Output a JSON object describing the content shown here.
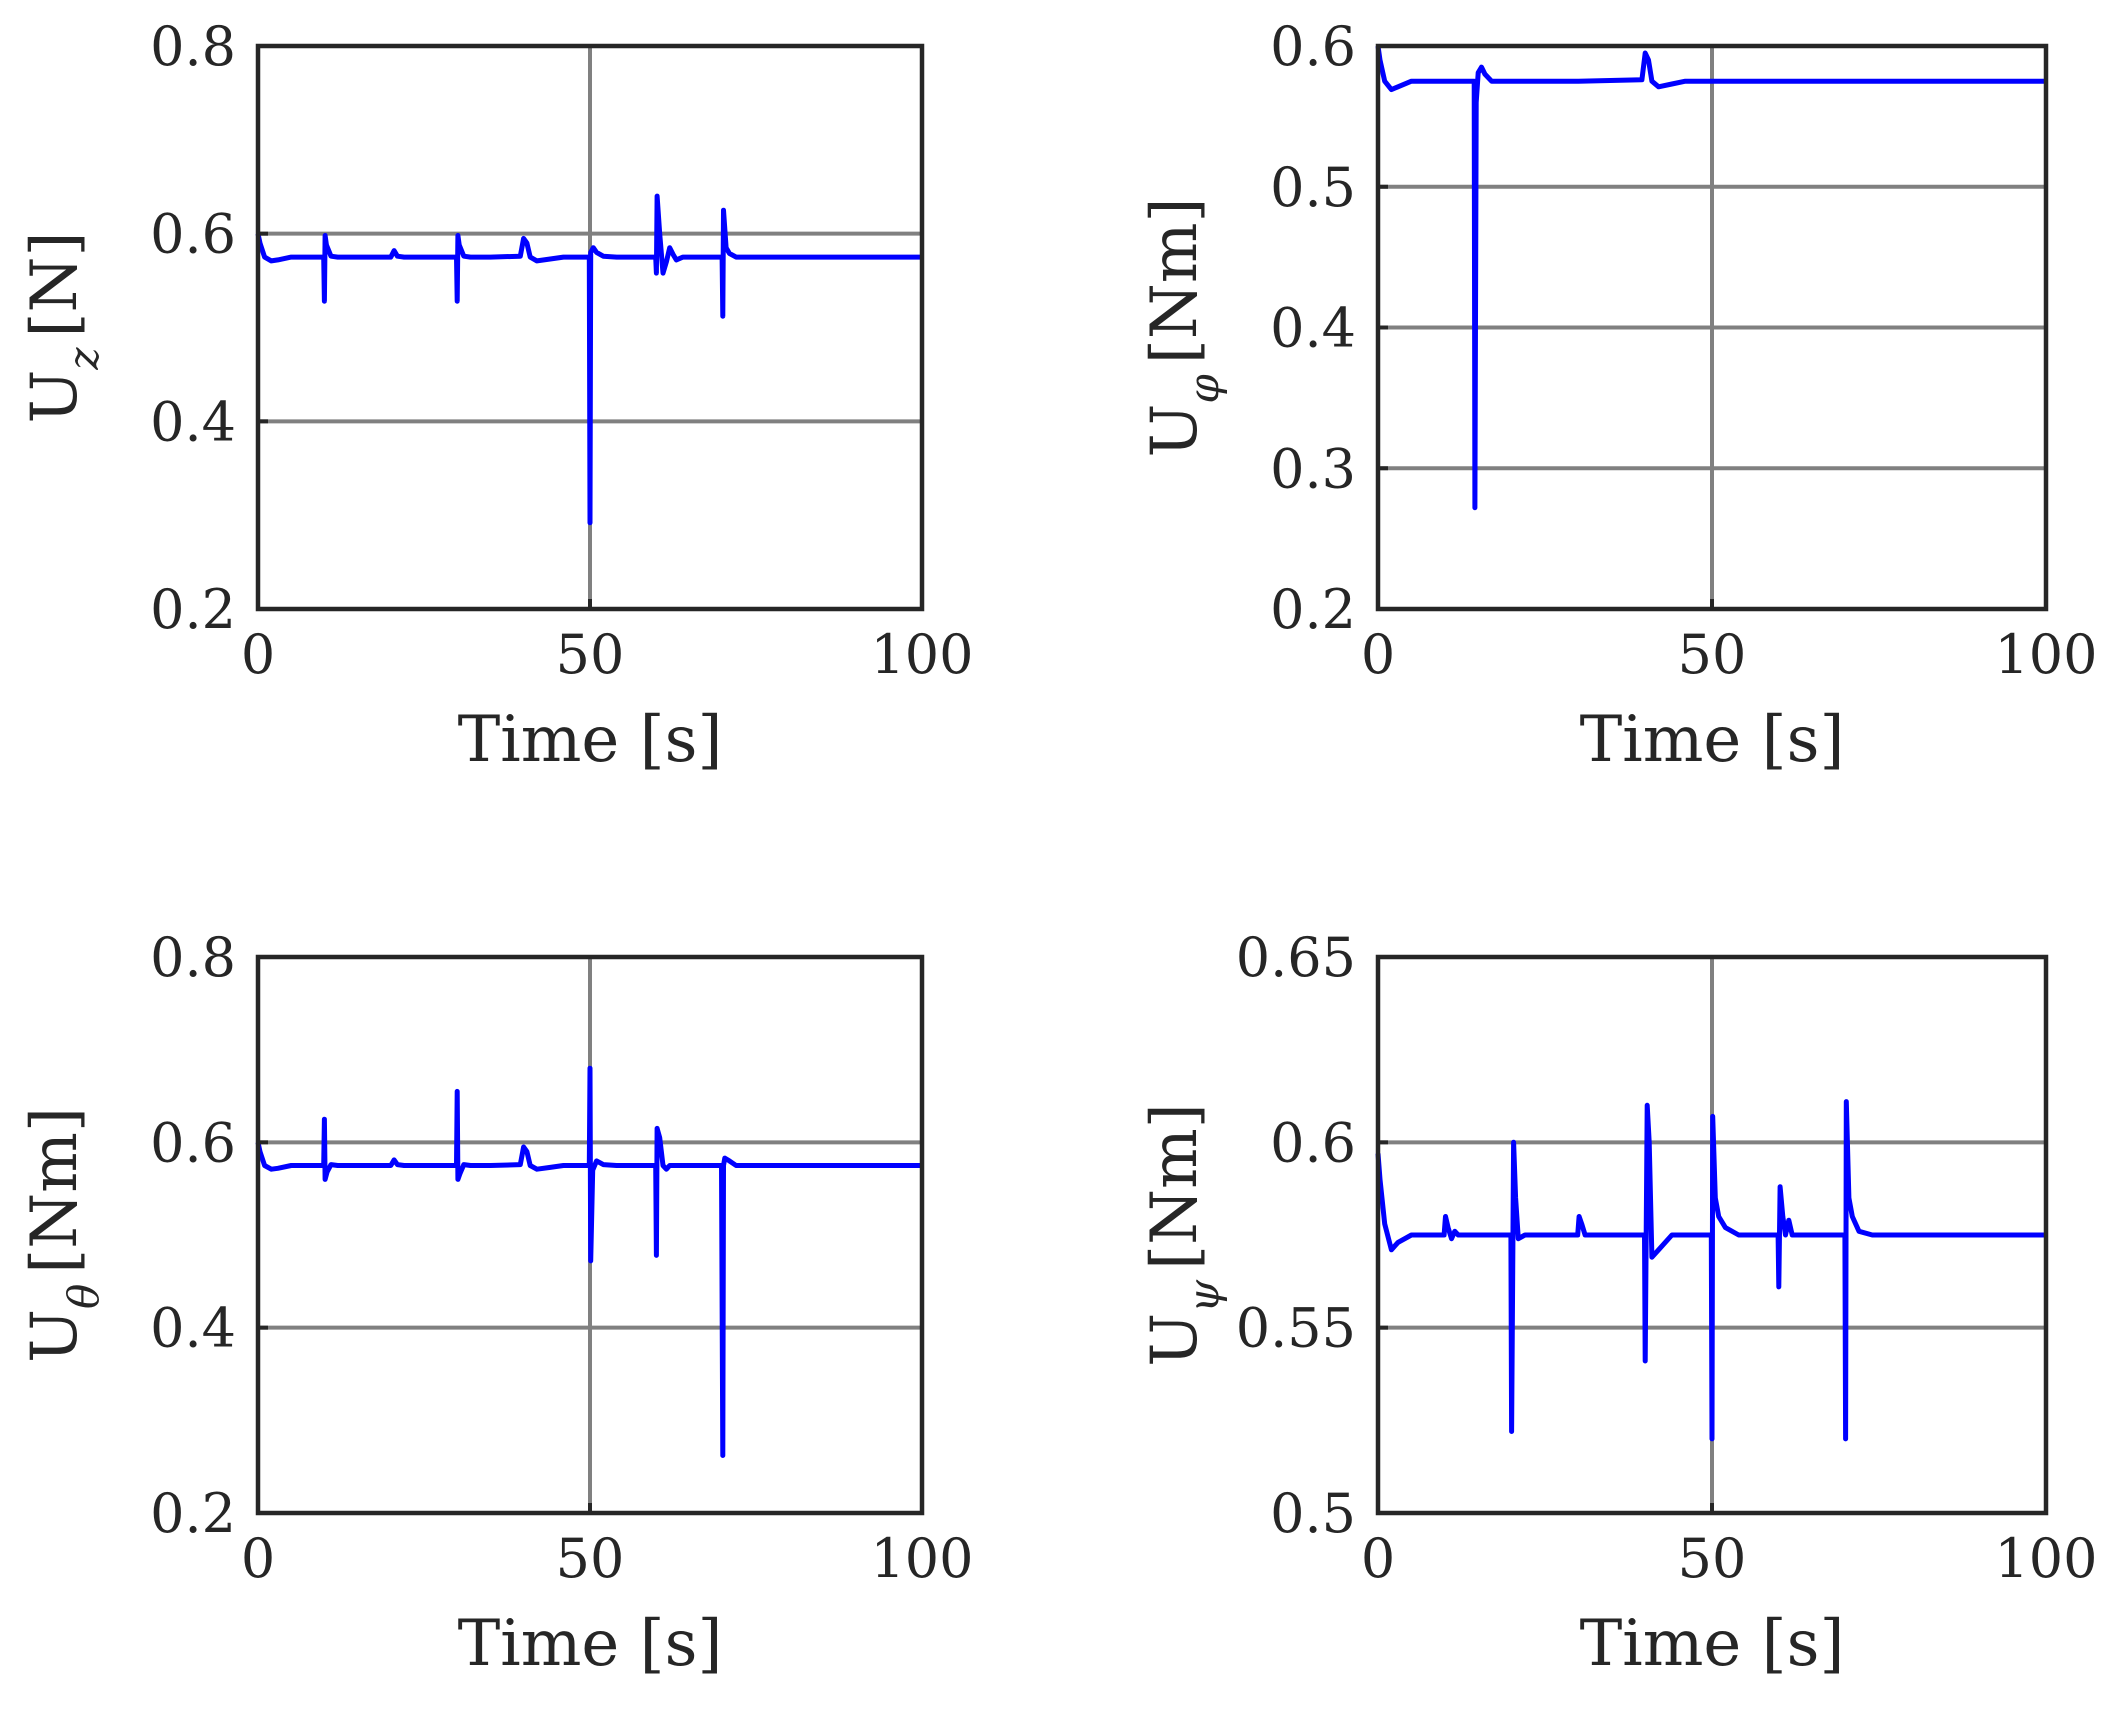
{
  "colors": {
    "line": "#0000ff",
    "grid": "#808080",
    "axes": "#262626",
    "text": "#262626"
  },
  "chart_data": [
    {
      "type": "line",
      "xlabel": "Time [s]",
      "ylabel_main": "U",
      "ylabel_sub": "z",
      "ylabel_unit": "[N]",
      "xlim": [
        0,
        100
      ],
      "ylim": [
        0.2,
        0.8
      ],
      "xticks": [
        0,
        50,
        100
      ],
      "xtick_labels": [
        "0",
        "50",
        "100"
      ],
      "yticks": [
        0.2,
        0.4,
        0.6,
        0.8
      ],
      "ytick_labels": [
        "0.2",
        "0.4",
        "0.6",
        "0.8"
      ],
      "grid": true,
      "series": [
        {
          "name": "U_z",
          "x": [
            0,
            0.3,
            1,
            2,
            3,
            5,
            8,
            9.9,
            10,
            10.1,
            10.3,
            11,
            12,
            15,
            20,
            20.5,
            21,
            22,
            25,
            29.9,
            30,
            30.1,
            30.3,
            31,
            32,
            35,
            39.5,
            40,
            40.5,
            41,
            42,
            44,
            46,
            49.9,
            50,
            50.1,
            50.5,
            51,
            52,
            54,
            56,
            59.9,
            60,
            60.1,
            60.5,
            61,
            61.5,
            62,
            62.5,
            63,
            64,
            66,
            69.9,
            70,
            70.1,
            70.5,
            71,
            72,
            74,
            80,
            100
          ],
          "y": [
            0.6,
            0.59,
            0.575,
            0.571,
            0.572,
            0.575,
            0.575,
            0.575,
            0.528,
            0.598,
            0.588,
            0.576,
            0.575,
            0.575,
            0.575,
            0.582,
            0.576,
            0.575,
            0.575,
            0.575,
            0.528,
            0.598,
            0.588,
            0.576,
            0.575,
            0.575,
            0.576,
            0.595,
            0.59,
            0.575,
            0.571,
            0.573,
            0.575,
            0.575,
            0.292,
            0.58,
            0.585,
            0.58,
            0.576,
            0.575,
            0.575,
            0.575,
            0.558,
            0.64,
            0.6,
            0.558,
            0.57,
            0.585,
            0.578,
            0.572,
            0.575,
            0.575,
            0.575,
            0.512,
            0.625,
            0.585,
            0.579,
            0.575,
            0.575,
            0.575,
            0.575
          ]
        }
      ]
    },
    {
      "type": "line",
      "xlabel": "Time [s]",
      "ylabel_main": "U",
      "ylabel_sub": "φ",
      "ylabel_unit": "[Nm]",
      "xlim": [
        0,
        100
      ],
      "ylim": [
        0.2,
        0.6
      ],
      "xticks": [
        0,
        50,
        100
      ],
      "xtick_labels": [
        "0",
        "50",
        "100"
      ],
      "yticks": [
        0.2,
        0.3,
        0.4,
        0.5,
        0.6
      ],
      "ytick_labels": [
        "0.2",
        "0.3",
        "0.4",
        "0.5",
        "0.6"
      ],
      "grid": true,
      "series": [
        {
          "name": "U_phi",
          "x": [
            0,
            0.3,
            1,
            2,
            3,
            5,
            8,
            12,
            14.4,
            14.5,
            14.7,
            15,
            15.5,
            16,
            17,
            20,
            30,
            39.5,
            40,
            40.5,
            41,
            42,
            44,
            46,
            50,
            100
          ],
          "y": [
            0.6,
            0.59,
            0.575,
            0.569,
            0.571,
            0.575,
            0.575,
            0.575,
            0.575,
            0.272,
            0.56,
            0.581,
            0.585,
            0.58,
            0.575,
            0.575,
            0.575,
            0.576,
            0.595,
            0.59,
            0.575,
            0.571,
            0.573,
            0.575,
            0.575,
            0.575
          ]
        }
      ]
    },
    {
      "type": "line",
      "xlabel": "Time [s]",
      "ylabel_main": "U",
      "ylabel_sub": "θ",
      "ylabel_unit": "[Nm]",
      "xlim": [
        0,
        100
      ],
      "ylim": [
        0.2,
        0.8
      ],
      "xticks": [
        0,
        50,
        100
      ],
      "xtick_labels": [
        "0",
        "50",
        "100"
      ],
      "yticks": [
        0.2,
        0.4,
        0.6,
        0.8
      ],
      "ytick_labels": [
        "0.2",
        "0.4",
        "0.6",
        "0.8"
      ],
      "grid": true,
      "series": [
        {
          "name": "U_theta",
          "x": [
            0,
            0.3,
            1,
            2,
            3,
            5,
            8,
            9.9,
            10,
            10.1,
            10.4,
            11,
            12,
            15,
            20,
            20.5,
            21,
            22,
            25,
            29.9,
            30,
            30.1,
            30.4,
            31,
            32,
            35,
            39.5,
            40,
            40.5,
            41,
            42,
            44,
            46,
            49.9,
            50,
            50.1,
            50.4,
            51,
            52,
            54,
            59.9,
            60,
            60.1,
            60.5,
            61,
            61.5,
            62,
            64,
            69.8,
            70,
            70.1,
            70.3,
            71,
            72,
            74,
            80,
            100
          ],
          "y": [
            0.6,
            0.59,
            0.575,
            0.571,
            0.572,
            0.575,
            0.575,
            0.575,
            0.625,
            0.56,
            0.568,
            0.576,
            0.575,
            0.575,
            0.575,
            0.581,
            0.576,
            0.575,
            0.575,
            0.575,
            0.655,
            0.56,
            0.566,
            0.576,
            0.575,
            0.575,
            0.576,
            0.595,
            0.59,
            0.575,
            0.571,
            0.573,
            0.575,
            0.575,
            0.68,
            0.472,
            0.57,
            0.58,
            0.576,
            0.575,
            0.575,
            0.478,
            0.615,
            0.605,
            0.575,
            0.571,
            0.575,
            0.575,
            0.575,
            0.262,
            0.575,
            0.583,
            0.58,
            0.575,
            0.575,
            0.575,
            0.575
          ]
        }
      ]
    },
    {
      "type": "line",
      "xlabel": "Time [s]",
      "ylabel_main": "U",
      "ylabel_sub": "ψ",
      "ylabel_unit": "[Nm]",
      "xlim": [
        0,
        100
      ],
      "ylim": [
        0.5,
        0.65
      ],
      "xticks": [
        0,
        50,
        100
      ],
      "xtick_labels": [
        "0",
        "50",
        "100"
      ],
      "yticks": [
        0.5,
        0.55,
        0.6,
        0.65
      ],
      "ytick_labels": [
        "0.5",
        "0.55",
        "0.6",
        "0.65"
      ],
      "grid": true,
      "series": [
        {
          "name": "U_psi",
          "x": [
            0,
            0.3,
            1,
            2,
            3,
            5,
            8,
            9.9,
            10.1,
            10.5,
            11,
            11.5,
            12,
            15,
            19.9,
            20,
            20.3,
            20.6,
            21,
            22,
            25,
            29.9,
            30.1,
            30.5,
            31,
            32,
            35,
            39.9,
            40,
            40.3,
            40.6,
            41,
            42,
            44,
            46,
            49.9,
            50,
            50.1,
            50.5,
            51,
            52,
            54,
            59.9,
            60,
            60.2,
            60.6,
            61,
            61.5,
            62,
            64,
            69.9,
            70,
            70.1,
            70.5,
            71,
            72,
            74,
            80,
            100
          ],
          "y": [
            0.597,
            0.59,
            0.578,
            0.571,
            0.573,
            0.575,
            0.575,
            0.575,
            0.58,
            0.577,
            0.574,
            0.576,
            0.575,
            0.575,
            0.575,
            0.522,
            0.6,
            0.585,
            0.574,
            0.575,
            0.575,
            0.575,
            0.58,
            0.578,
            0.575,
            0.575,
            0.575,
            0.575,
            0.541,
            0.61,
            0.6,
            0.569,
            0.571,
            0.575,
            0.575,
            0.575,
            0.52,
            0.607,
            0.585,
            0.58,
            0.577,
            0.575,
            0.575,
            0.561,
            0.588,
            0.58,
            0.575,
            0.579,
            0.575,
            0.575,
            0.575,
            0.52,
            0.611,
            0.585,
            0.58,
            0.576,
            0.575,
            0.575,
            0.575
          ]
        }
      ]
    }
  ]
}
